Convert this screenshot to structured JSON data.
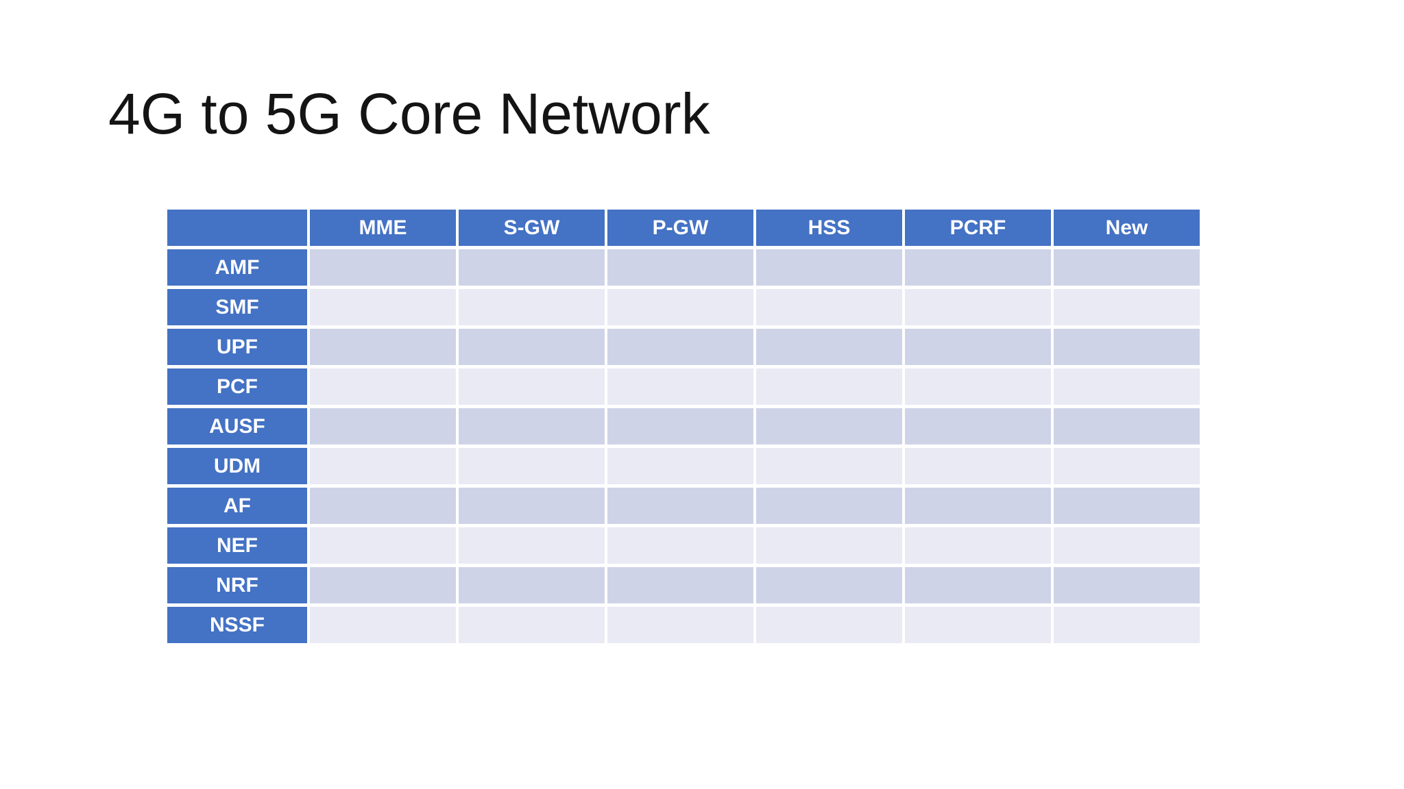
{
  "slide": {
    "title": "4G to 5G Core Network"
  },
  "table": {
    "corner_label": "",
    "columns": [
      "MME",
      "S-GW",
      "P-GW",
      "HSS",
      "PCRF",
      "New"
    ],
    "rows": [
      {
        "label": "AMF",
        "cells": [
          "",
          "",
          "",
          "",
          "",
          ""
        ]
      },
      {
        "label": "SMF",
        "cells": [
          "",
          "",
          "",
          "",
          "",
          ""
        ]
      },
      {
        "label": "UPF",
        "cells": [
          "",
          "",
          "",
          "",
          "",
          ""
        ]
      },
      {
        "label": "PCF",
        "cells": [
          "",
          "",
          "",
          "",
          "",
          ""
        ]
      },
      {
        "label": "AUSF",
        "cells": [
          "",
          "",
          "",
          "",
          "",
          ""
        ]
      },
      {
        "label": "UDM",
        "cells": [
          "",
          "",
          "",
          "",
          "",
          ""
        ]
      },
      {
        "label": "AF",
        "cells": [
          "",
          "",
          "",
          "",
          "",
          ""
        ]
      },
      {
        "label": "NEF",
        "cells": [
          "",
          "",
          "",
          "",
          "",
          ""
        ]
      },
      {
        "label": "NRF",
        "cells": [
          "",
          "",
          "",
          "",
          "",
          ""
        ]
      },
      {
        "label": "NSSF",
        "cells": [
          "",
          "",
          "",
          "",
          "",
          ""
        ]
      }
    ]
  },
  "colors": {
    "header_blue": "#4472C4",
    "band_dark": "#CFD3E7",
    "band_light": "#E9EAF4",
    "header_text": "#FFFFFF",
    "title_text": "#141414",
    "background": "#FFFFFF"
  }
}
